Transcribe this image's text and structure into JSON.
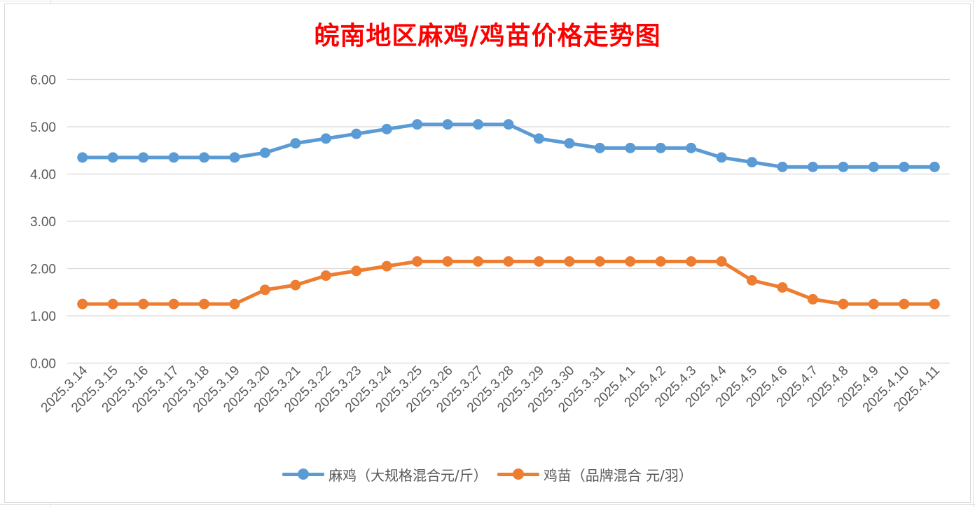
{
  "chart_data": {
    "type": "line",
    "title": "皖南地区麻鸡/鸡苗价格走势图",
    "xlabel": "",
    "ylabel": "",
    "ylim": [
      0,
      6
    ],
    "yticks": [
      "0.00",
      "1.00",
      "2.00",
      "3.00",
      "4.00",
      "5.00",
      "6.00"
    ],
    "grid": true,
    "legend_position": "bottom",
    "categories": [
      "2025.3.14",
      "2025.3.15",
      "2025.3.16",
      "2025.3.17",
      "2025.3.18",
      "2025.3.19",
      "2025.3.20",
      "2025.3.21",
      "2025.3.22",
      "2025.3.23",
      "2025.3.24",
      "2025.3.25",
      "2025.3.26",
      "2025.3.27",
      "2025.3.28",
      "2025.3.29",
      "2025.3.30",
      "2025.3.31",
      "2025.4.1",
      "2025.4.2",
      "2025.4.3",
      "2025.4.4",
      "2025.4.5",
      "2025.4.6",
      "2025.4.7",
      "2025.4.8",
      "2025.4.9",
      "2025.4.10",
      "2025.4.11"
    ],
    "series": [
      {
        "name": "麻鸡（大规格混合元/斤）",
        "color": "#5b9bd5",
        "values": [
          4.35,
          4.35,
          4.35,
          4.35,
          4.35,
          4.35,
          4.45,
          4.65,
          4.75,
          4.85,
          4.95,
          5.05,
          5.05,
          5.05,
          5.05,
          4.75,
          4.65,
          4.55,
          4.55,
          4.55,
          4.55,
          4.35,
          4.25,
          4.15,
          4.15,
          4.15,
          4.15,
          4.15,
          4.15
        ]
      },
      {
        "name": "鸡苗（品牌混合 元/羽）",
        "color": "#ed7d31",
        "values": [
          1.25,
          1.25,
          1.25,
          1.25,
          1.25,
          1.25,
          1.55,
          1.65,
          1.85,
          1.95,
          2.05,
          2.15,
          2.15,
          2.15,
          2.15,
          2.15,
          2.15,
          2.15,
          2.15,
          2.15,
          2.15,
          2.15,
          1.75,
          1.6,
          1.35,
          1.25,
          1.25,
          1.25,
          1.25
        ]
      }
    ]
  }
}
